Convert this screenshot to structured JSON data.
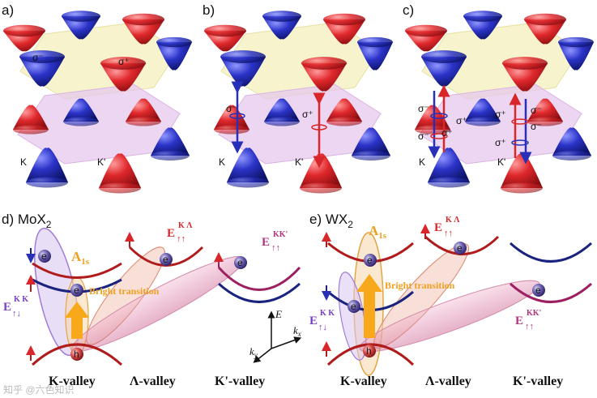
{
  "top": {
    "panel_a": {
      "label": "a)",
      "sigma_minus": "σ⁻",
      "sigma_plus": "σ⁺",
      "K": "K",
      "Kp": "K'"
    },
    "panel_b": {
      "label": "b)",
      "sigma_minus": "σ⁻",
      "sigma_plus": "σ⁺",
      "K": "K",
      "Kp": "K'"
    },
    "panel_c": {
      "label": "c)",
      "sig1": "σ⁻",
      "sig2": "σ⁺",
      "sig3": "σ⁻",
      "sig4": "σ⁺",
      "sig5": "σ⁺",
      "sig6": "σ⁻",
      "sig7": "σ⁺",
      "sig8": "σ⁻",
      "K": "K",
      "Kp": "K'"
    }
  },
  "panel_d": {
    "label": "d) MoX",
    "label_sub": "2",
    "e1": "e",
    "e2": "e",
    "e3": "e",
    "e4": "e",
    "h": "h",
    "A": "A",
    "A_sub": "1s",
    "bright": "Bright transition",
    "EKK_base": "E",
    "EKK_sup": "K K",
    "EKK_sub": "↑↓",
    "EKL_base": "E",
    "EKL_sup": "K Λ",
    "EKL_sub": "↑↑",
    "EKKp_base": "E",
    "EKKp_sup": "KK'",
    "EKKp_sub": "↑↑",
    "valley_K": "K-valley",
    "valley_L": "Λ-valley",
    "valley_Kp": "K'-valley",
    "axis_E": "E",
    "axis_kx": "k",
    "axis_kx_sub": "x",
    "axis_ky": "k",
    "axis_ky_sub": "y"
  },
  "panel_e": {
    "label": "e) WX",
    "label_sub": "2",
    "e1": "e",
    "e2": "e",
    "e3": "e",
    "e4": "e",
    "h": "h",
    "A": "A",
    "A_sub": "1s",
    "bright": "Bright transition",
    "EKK_base": "E",
    "EKK_sup": "K K",
    "EKK_sub": "↑↓",
    "EKL_base": "E",
    "EKL_sup": "K Λ",
    "EKL_sub": "↑↑",
    "EKKp_base": "E",
    "EKKp_sup": "KK'",
    "EKKp_sub": "↑↑",
    "valley_K": "K-valley",
    "valley_L": "Λ-valley",
    "valley_Kp": "K'-valley"
  },
  "watermark": "知乎 @六色知识",
  "colors": {
    "red": "#d8262b",
    "blue": "#1f2ea8",
    "darkred": "#b01c1c",
    "navy": "#1a237e",
    "magenta": "#b0357a",
    "orange": "#f7a81b",
    "purple": "#7b3fc0"
  }
}
